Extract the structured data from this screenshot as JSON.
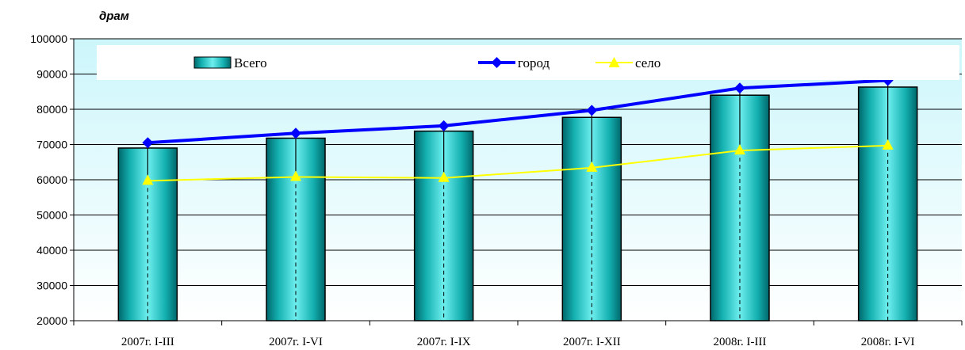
{
  "chart_data": {
    "type": "bar",
    "ylabel": "драм",
    "ylim": [
      20000,
      100000
    ],
    "yticks": [
      20000,
      30000,
      40000,
      50000,
      60000,
      70000,
      80000,
      90000,
      100000
    ],
    "categories": [
      "2007г. I-III",
      "2007г. I-VI",
      "2007г. I-IX",
      "2007г. I-XII",
      "2008г. I-III",
      "2008г. I-VI"
    ],
    "series": [
      {
        "name": "Всего",
        "type": "bar",
        "color": "#19c4c4",
        "values": [
          69000,
          71800,
          73800,
          77700,
          84000,
          86300
        ]
      },
      {
        "name": "город",
        "type": "line",
        "color": "#0000ff",
        "marker": "diamond",
        "values": [
          70500,
          73200,
          75300,
          79700,
          86000,
          88200
        ]
      },
      {
        "name": "село",
        "type": "line",
        "color": "#ffff00",
        "marker": "triangle",
        "values": [
          59700,
          60800,
          60500,
          63400,
          68300,
          69700
        ]
      }
    ],
    "grid": true,
    "legend": "top"
  }
}
